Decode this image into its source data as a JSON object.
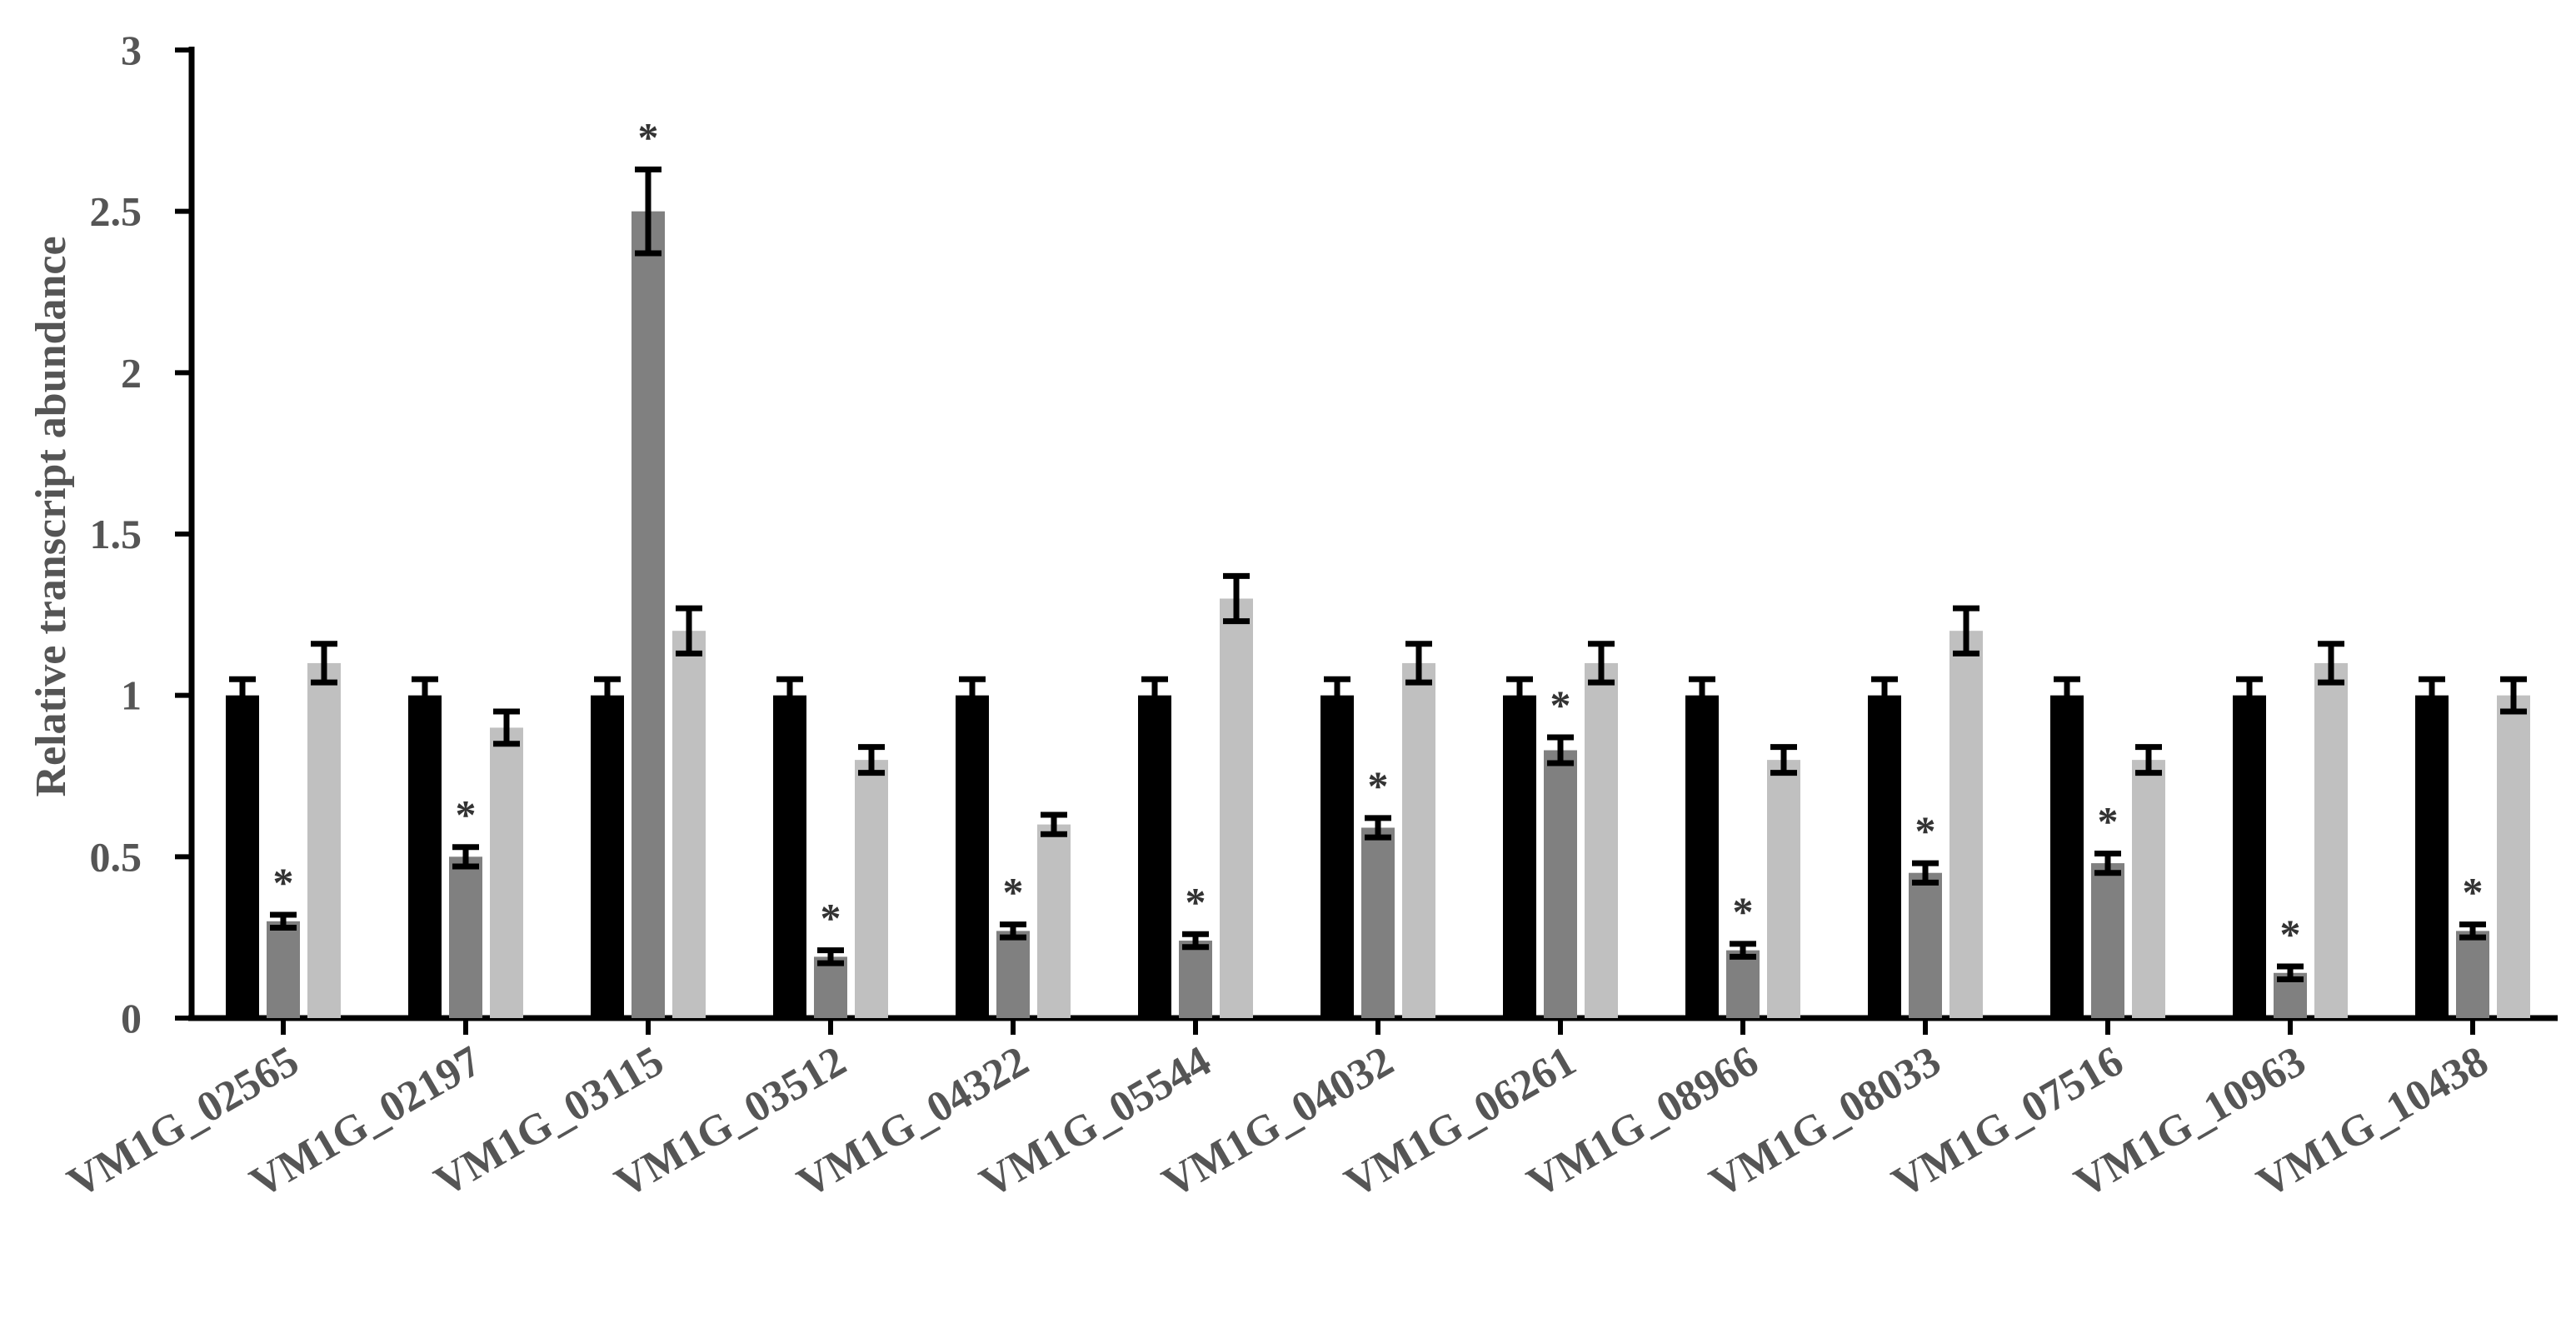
{
  "chart_data": {
    "type": "bar",
    "ylabel": "Relative transcript abundance",
    "xlabel": "",
    "ylim": [
      0,
      3
    ],
    "yticks": [
      "0",
      "0.5",
      "1",
      "1.5",
      "2",
      "2.5",
      "3"
    ],
    "grid": false,
    "legend": "none",
    "categories": [
      "VM1G_02565",
      "VM1G_02197",
      "VM1G_03115",
      "VM1G_03512",
      "VM1G_04322",
      "VM1G_05544",
      "VM1G_04032",
      "VM1G_06261",
      "VM1G_08966",
      "VM1G_08033",
      "VM1G_07516",
      "VM1G_10963",
      "VM1G_10438"
    ],
    "series": [
      {
        "color": "#000000",
        "values": [
          1.0,
          1.0,
          1.0,
          1.0,
          1.0,
          1.0,
          1.0,
          1.0,
          1.0,
          1.0,
          1.0,
          1.0,
          1.0
        ],
        "errors": [
          0.05,
          0.05,
          0.05,
          0.05,
          0.05,
          0.05,
          0.05,
          0.05,
          0.05,
          0.05,
          0.05,
          0.05,
          0.05
        ],
        "significant": [
          false,
          false,
          false,
          false,
          false,
          false,
          false,
          false,
          false,
          false,
          false,
          false,
          false
        ]
      },
      {
        "color": "#808080",
        "values": [
          0.3,
          0.5,
          2.5,
          0.19,
          0.27,
          0.24,
          0.59,
          0.83,
          0.21,
          0.45,
          0.48,
          0.14,
          0.27
        ],
        "errors": [
          0.02,
          0.03,
          0.13,
          0.02,
          0.02,
          0.02,
          0.03,
          0.04,
          0.02,
          0.03,
          0.03,
          0.02,
          0.02
        ],
        "significant": [
          true,
          true,
          true,
          true,
          true,
          true,
          true,
          true,
          true,
          true,
          true,
          true,
          true
        ]
      },
      {
        "color": "#c0c0c0",
        "values": [
          1.1,
          0.9,
          1.2,
          0.8,
          0.6,
          1.3,
          1.1,
          1.1,
          0.8,
          1.2,
          0.8,
          1.1,
          1.0
        ],
        "errors": [
          0.06,
          0.05,
          0.07,
          0.04,
          0.03,
          0.07,
          0.06,
          0.06,
          0.04,
          0.07,
          0.04,
          0.06,
          0.05
        ],
        "significant": [
          false,
          false,
          false,
          false,
          false,
          false,
          false,
          false,
          false,
          false,
          false,
          false,
          false
        ]
      }
    ],
    "annotation_symbol": "*"
  }
}
